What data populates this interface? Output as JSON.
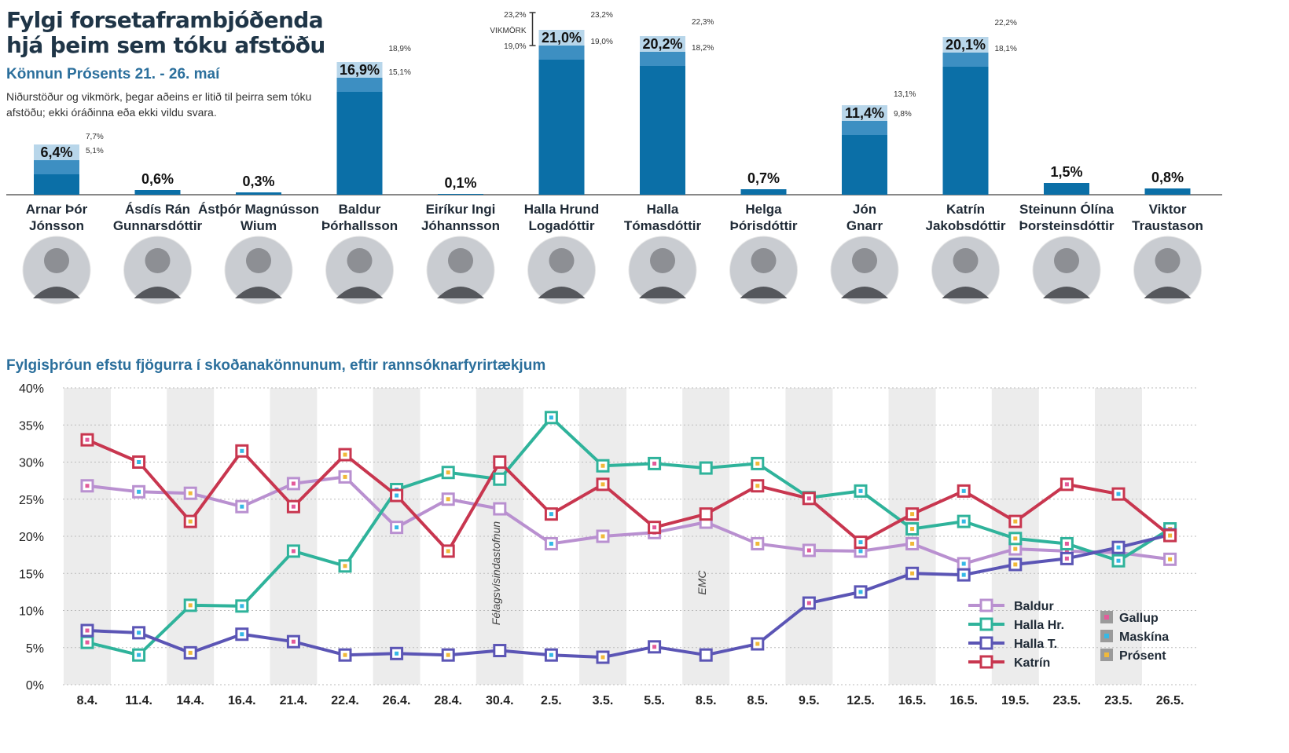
{
  "header": {
    "title": "Fylgi forsetaframbjóðenda hjá þeim sem tóku afstöðu",
    "subtitle": "Könnun Prósents 21. - 26. maí",
    "note": "Niðurstöður og vikmörk, þegar aðeins er litið til þeirra sem tóku afstöðu; ekki óráðinna eða ekki vildu svara.",
    "margin_label": "VIKMÖRK"
  },
  "colors": {
    "bar": "#0b6fa7",
    "bar_top": "#3d8fc2",
    "bar_label_bg": "#b8d6ea",
    "baldur": "#b990d0",
    "halla_hr": "#2fb39b",
    "halla_t": "#5b55b5",
    "katrin": "#c8364f",
    "gallup": "#e35b9a",
    "maskina": "#35b9e6",
    "prosent": "#f0b93a"
  },
  "chart_data": [
    {
      "type": "bar",
      "categories": [
        "Arnar Þór Jónsson",
        "Ásdís Rán Gunnarsdóttir",
        "Ástþór Magnússon Wium",
        "Baldur Þórhallsson",
        "Eiríkur Ingi Jóhannsson",
        "Halla Hrund Logadóttir",
        "Halla Tómasdóttir",
        "Helga Þórisdóttir",
        "Jón Gnarr",
        "Katrín Jakobsdóttir",
        "Steinunn Ólína Þorsteinsdóttir",
        "Viktor Traustason"
      ],
      "name_lines": [
        [
          "Arnar Þór",
          "Jónsson"
        ],
        [
          "Ásdís Rán",
          "Gunnarsdóttir"
        ],
        [
          "Ástþór Magnússon",
          "Wium"
        ],
        [
          "Baldur",
          "Þórhallsson"
        ],
        [
          "Eiríkur Ingi",
          "Jóhannsson"
        ],
        [
          "Halla Hrund",
          "Logadóttir"
        ],
        [
          "Halla",
          "Tómasdóttir"
        ],
        [
          "Helga",
          "Þórisdóttir"
        ],
        [
          "Jón",
          "Gnarr"
        ],
        [
          "Katrín",
          "Jakobsdóttir"
        ],
        [
          "Steinunn Ólína",
          "Þorsteinsdóttir"
        ],
        [
          "Viktor",
          "Traustason"
        ]
      ],
      "values": [
        6.4,
        0.6,
        0.3,
        16.9,
        0.1,
        21.0,
        20.2,
        0.7,
        11.4,
        20.1,
        1.5,
        0.8
      ],
      "value_labels": [
        "6,4%",
        "0,6%",
        "0,3%",
        "16,9%",
        "0,1%",
        "21,0%",
        "20,2%",
        "0,7%",
        "11,4%",
        "20,1%",
        "1,5%",
        "0,8%"
      ],
      "margin_high": [
        7.7,
        null,
        null,
        18.9,
        null,
        23.2,
        22.3,
        null,
        13.1,
        22.2,
        null,
        null
      ],
      "margin_low": [
        5.1,
        null,
        null,
        15.1,
        null,
        19.0,
        18.2,
        null,
        9.8,
        18.1,
        null,
        null
      ],
      "margin_high_labels": [
        "7,7%",
        "",
        "",
        "18,9%",
        "",
        "23,2%",
        "22,3%",
        "",
        "13,1%",
        "22,2%",
        "",
        ""
      ],
      "margin_low_labels": [
        "5,1%",
        "",
        "",
        "15,1%",
        "",
        "19,0%",
        "18,2%",
        "",
        "9,8%",
        "18,1%",
        "",
        ""
      ]
    },
    {
      "type": "line",
      "title": "Fylgisþróun efstu fjögurra í skoðanakönnunum, eftir rannsóknarfyrirtækjum",
      "x": [
        "8.4.",
        "11.4.",
        "14.4.",
        "16.4.",
        "21.4.",
        "22.4.",
        "26.4.",
        "28.4.",
        "30.4.",
        "2.5.",
        "3.5.",
        "5.5.",
        "8.5.",
        "8.5.",
        "9.5.",
        "12.5.",
        "16.5.",
        "16.5.",
        "19.5.",
        "23.5.",
        "23.5.",
        "26.5."
      ],
      "pollster": [
        "Gallup",
        "Maskína",
        "Prósent",
        "Maskína",
        "Gallup",
        "Prósent",
        "Maskína",
        "Prósent",
        "Félagsvísindastofnun",
        "Maskína",
        "Prósent",
        "Gallup",
        "EMC",
        "Prósent",
        "Gallup",
        "Maskína",
        "Prósent",
        "Maskína",
        "Prósent",
        "Gallup",
        "Maskína",
        "Prósent"
      ],
      "series": [
        {
          "name": "Baldur",
          "values": [
            26.8,
            26.0,
            25.8,
            24.0,
            27.1,
            28.0,
            21.2,
            25.0,
            23.7,
            19.0,
            20.0,
            20.5,
            21.9,
            19.0,
            18.1,
            18.0,
            19.0,
            16.3,
            18.3,
            18.0,
            17.8,
            16.9
          ]
        },
        {
          "name": "Halla Hr.",
          "values": [
            5.7,
            4.0,
            10.7,
            10.6,
            18.0,
            16.0,
            26.3,
            28.6,
            27.7,
            36.0,
            29.5,
            29.8,
            29.2,
            29.8,
            25.2,
            26.1,
            21.0,
            22.0,
            19.7,
            19.0,
            16.7,
            21.0
          ]
        },
        {
          "name": "Halla T.",
          "values": [
            7.3,
            7.0,
            4.3,
            6.8,
            5.8,
            4.0,
            4.2,
            4.0,
            4.6,
            4.0,
            3.7,
            5.1,
            4.0,
            5.5,
            11.0,
            12.5,
            15.0,
            14.8,
            16.2,
            17.0,
            18.5,
            20.2
          ]
        },
        {
          "name": "Katrín",
          "values": [
            33.0,
            30.0,
            22.0,
            31.5,
            24.0,
            31.0,
            25.5,
            18.0,
            30.0,
            23.0,
            27.0,
            21.2,
            23.0,
            26.8,
            25.1,
            19.2,
            23.0,
            26.1,
            22.0,
            27.0,
            25.7,
            20.1
          ]
        }
      ],
      "y_ticks": [
        "40%",
        "35%",
        "30%",
        "25%",
        "20%",
        "15%",
        "10%",
        "5%",
        "0%"
      ],
      "ylim": [
        0,
        40
      ],
      "annotations": [
        "Félagsvísindastofnun",
        "EMC"
      ],
      "legend": {
        "pollsters": [
          "Gallup",
          "Maskína",
          "Prósent"
        ],
        "placement": "bottom-right"
      }
    }
  ]
}
